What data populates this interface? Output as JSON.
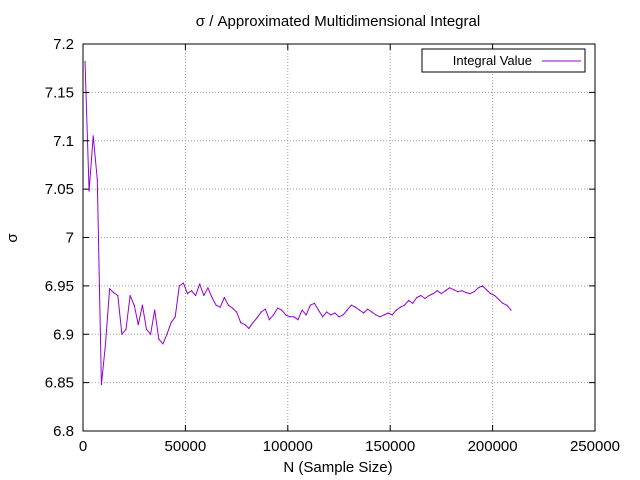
{
  "chart_data": {
    "type": "line",
    "title": "σ / Approximated Multidimensional Integral",
    "xlabel": "N (Sample Size)",
    "ylabel": "σ",
    "xlim": [
      0,
      250000
    ],
    "ylim": [
      6.8,
      7.2
    ],
    "xticks": [
      0,
      50000,
      100000,
      150000,
      200000,
      250000
    ],
    "yticks": [
      6.8,
      6.85,
      6.9,
      6.95,
      7.0,
      7.05,
      7.1,
      7.15,
      7.2
    ],
    "xtick_labels": [
      "0",
      "50000",
      "100000",
      "150000",
      "200000",
      "250000"
    ],
    "ytick_labels": [
      "6.8",
      "6.85",
      "6.9",
      "6.95",
      "7",
      "7.05",
      "7.1",
      "7.15",
      "7.2"
    ],
    "grid": true,
    "legend_position": "top-right",
    "series": [
      {
        "name": "Integral Value",
        "color": "#9400d3",
        "x": [
          1000,
          3000,
          5000,
          7000,
          9000,
          11000,
          13000,
          15000,
          17000,
          19000,
          21000,
          23000,
          25000,
          27000,
          29000,
          31000,
          33000,
          35000,
          37000,
          39000,
          41000,
          43000,
          45000,
          47000,
          49000,
          51000,
          53000,
          55000,
          57000,
          59000,
          61000,
          63000,
          65000,
          67000,
          69000,
          71000,
          73000,
          75000,
          77000,
          79000,
          81000,
          83000,
          85000,
          87000,
          89000,
          91000,
          93000,
          95000,
          97000,
          99000,
          101000,
          103000,
          105000,
          107000,
          109000,
          111000,
          113000,
          115000,
          117000,
          119000,
          121000,
          123000,
          125000,
          127000,
          129000,
          131000,
          133000,
          135000,
          137000,
          139000,
          141000,
          143000,
          145000,
          147000,
          149000,
          151000,
          153000,
          155000,
          157000,
          159000,
          161000,
          163000,
          165000,
          167000,
          169000,
          171000,
          173000,
          175000,
          177000,
          179000,
          181000,
          183000,
          185000,
          187000,
          189000,
          191000,
          193000,
          195000,
          197000,
          199000,
          201000,
          203000,
          205000,
          207000,
          209000
        ],
        "y": [
          7.182,
          7.048,
          7.105,
          7.06,
          6.848,
          6.89,
          6.947,
          6.943,
          6.94,
          6.9,
          6.905,
          6.94,
          6.93,
          6.91,
          6.93,
          6.905,
          6.9,
          6.925,
          6.895,
          6.89,
          6.9,
          6.912,
          6.918,
          6.95,
          6.953,
          6.942,
          6.945,
          6.94,
          6.952,
          6.94,
          6.948,
          6.938,
          6.93,
          6.928,
          6.938,
          6.93,
          6.927,
          6.923,
          6.912,
          6.91,
          6.906,
          6.912,
          6.917,
          6.923,
          6.926,
          6.915,
          6.92,
          6.927,
          6.925,
          6.92,
          6.918,
          6.918,
          6.915,
          6.925,
          6.92,
          6.93,
          6.932,
          6.925,
          6.918,
          6.923,
          6.92,
          6.922,
          6.918,
          6.92,
          6.925,
          6.93,
          6.928,
          6.925,
          6.922,
          6.926,
          6.923,
          6.92,
          6.918,
          6.92,
          6.922,
          6.92,
          6.925,
          6.928,
          6.93,
          6.935,
          6.932,
          6.938,
          6.94,
          6.937,
          6.94,
          6.942,
          6.945,
          6.942,
          6.945,
          6.948,
          6.946,
          6.944,
          6.945,
          6.943,
          6.942,
          6.944,
          6.948,
          6.95,
          6.946,
          6.942,
          6.94,
          6.936,
          6.932,
          6.93,
          6.925
        ]
      }
    ]
  }
}
